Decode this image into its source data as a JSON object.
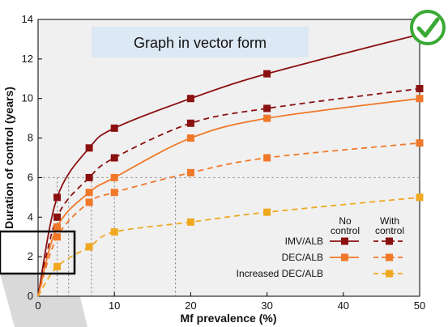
{
  "banner": {
    "text": "Graph in vector form"
  },
  "badge_icon": "check-circle-icon",
  "colors": {
    "imv_alb": "#8b1010",
    "dec_alb": "#f07828",
    "increased_dec_alb": "#f0a820",
    "badge": "#3aaa35",
    "banner_bg": "#dce8f4",
    "plot_bg": "#f0f0f0"
  },
  "legend": {
    "col_no_control": "No control",
    "col_with_control": "With control",
    "rows": [
      "IMV/ALB",
      "DEC/ALB",
      "Increased DEC/ALB"
    ]
  },
  "chart_data": {
    "type": "line",
    "xlabel": "Mf prevalence (%)",
    "ylabel": "Duration of control (years)",
    "xlim": [
      0,
      50
    ],
    "ylim": [
      0,
      14
    ],
    "xticks": [
      0,
      10,
      20,
      30,
      40,
      50
    ],
    "yticks": [
      0,
      2,
      4,
      6,
      8,
      10,
      12,
      14
    ],
    "reference_line": {
      "y": 6
    },
    "reference_drops_x": [
      2.5,
      4,
      7,
      10,
      18
    ],
    "series": [
      {
        "name": "IMV/ALB",
        "style": "solid",
        "color": "#8b1010",
        "x": [
          0,
          2.5,
          6.7,
          10,
          20,
          30,
          50
        ],
        "y": [
          0,
          5,
          7.5,
          8.5,
          10,
          11.25,
          13.25
        ]
      },
      {
        "name": "IMV/ALB",
        "style": "dashed",
        "color": "#8b1010",
        "x": [
          0,
          2.5,
          6.7,
          10,
          20,
          30,
          50
        ],
        "y": [
          0,
          4,
          6,
          7,
          8.75,
          9.5,
          10.5
        ]
      },
      {
        "name": "DEC/ALB",
        "style": "solid",
        "color": "#f07828",
        "x": [
          0,
          2.5,
          6.7,
          10,
          20,
          30,
          50
        ],
        "y": [
          0,
          3.5,
          5.25,
          6,
          8,
          9,
          10
        ]
      },
      {
        "name": "DEC/ALB",
        "style": "dashed",
        "color": "#f07828",
        "x": [
          0,
          2.5,
          6.7,
          10,
          20,
          30,
          50
        ],
        "y": [
          0,
          3,
          4.75,
          5.25,
          6.25,
          7,
          7.75
        ]
      },
      {
        "name": "Increased DEC/ALB",
        "style": "dashed",
        "color": "#f0a820",
        "x": [
          0,
          2.5,
          6.7,
          10,
          20,
          30,
          50
        ],
        "y": [
          0,
          1.5,
          2.5,
          3.25,
          3.75,
          4.25,
          5
        ]
      }
    ]
  }
}
